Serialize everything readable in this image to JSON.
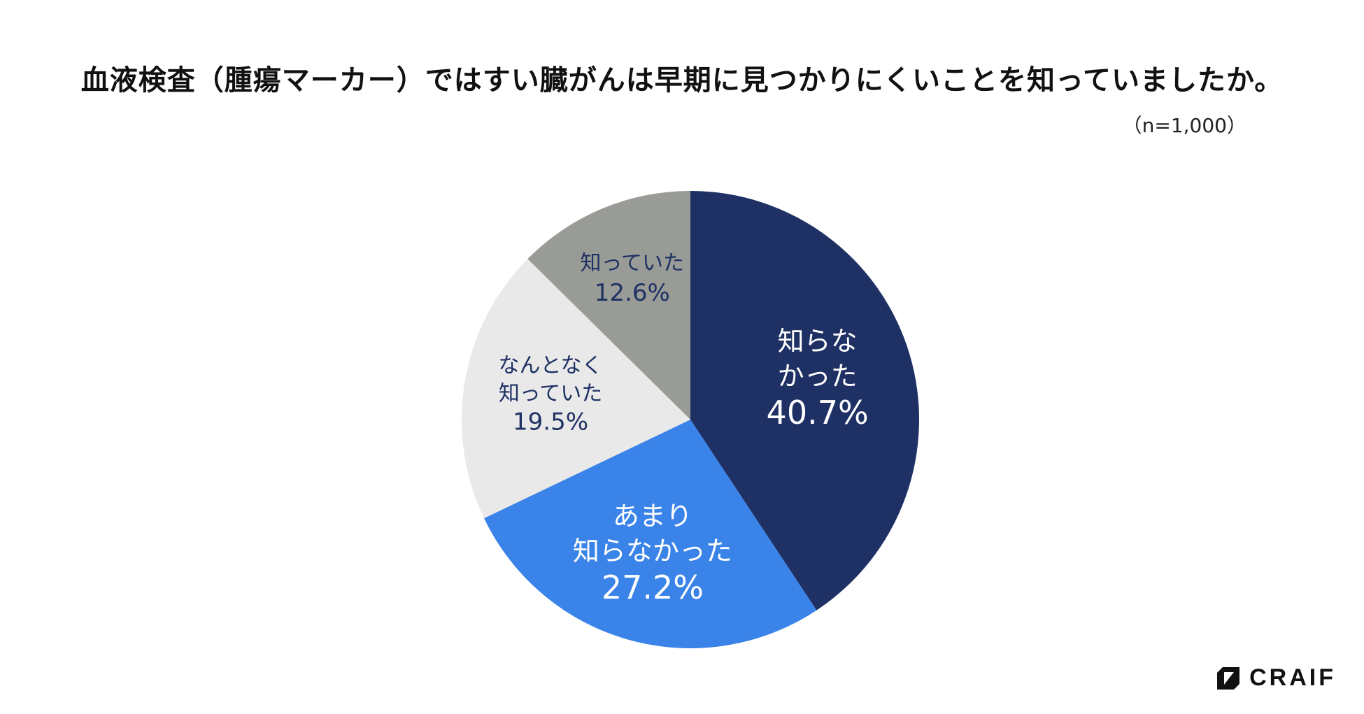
{
  "chart_data": {
    "type": "pie",
    "title": "血液検査（腫瘍マーカー）ではすい臓がんは早期に見つかりにくいことを知っていましたか。",
    "subtitle": "（n=1,000）",
    "slices": [
      {
        "label_lines": [
          "知らな",
          "かった"
        ],
        "value": 40.7,
        "value_label": "40.7%",
        "color": "#1e3064",
        "text_color": "#ffffff"
      },
      {
        "label_lines": [
          "あまり",
          "知らなかった"
        ],
        "value": 27.2,
        "value_label": "27.2%",
        "color": "#3a83e8",
        "text_color": "#ffffff"
      },
      {
        "label_lines": [
          "なんとなく",
          "知っていた"
        ],
        "value": 19.5,
        "value_label": "19.5%",
        "color": "#e9e9e9",
        "text_color": "#1e3064"
      },
      {
        "label_lines": [
          "知っていた"
        ],
        "value": 12.6,
        "value_label": "12.6%",
        "color": "#999b96",
        "text_color": "#1e3064"
      }
    ],
    "start_angle": "12 o'clock",
    "direction": "clockwise"
  },
  "brand": {
    "name": "CRAIF",
    "icon": "craif-logo-icon"
  }
}
